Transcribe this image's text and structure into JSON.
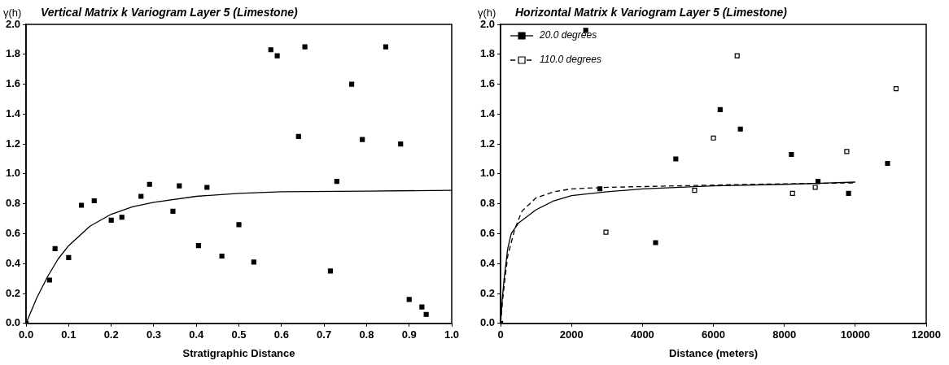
{
  "chart_data": [
    {
      "type": "scatter",
      "title": "Vertical Matrix k Variogram Layer 5 (Limestone)",
      "xlabel": "Stratigraphic Distance",
      "ylabel": "γ(h)",
      "xlim": [
        0,
        1
      ],
      "ylim": [
        0,
        2
      ],
      "xticks": [
        {
          "value": 0,
          "label": "0.0"
        },
        {
          "value": 0.1,
          "label": "0.1"
        },
        {
          "value": 0.2,
          "label": "0.2"
        },
        {
          "value": 0.3,
          "label": "0.3"
        },
        {
          "value": 0.4,
          "label": "0.4"
        },
        {
          "value": 0.5,
          "label": "0.5"
        },
        {
          "value": 0.6,
          "label": "0.6"
        },
        {
          "value": 0.7,
          "label": "0.7"
        },
        {
          "value": 0.8,
          "label": "0.8"
        },
        {
          "value": 0.9,
          "label": "0.9"
        },
        {
          "value": 1,
          "label": "1.0"
        }
      ],
      "yticks": [
        {
          "value": 0,
          "label": "0.0"
        },
        {
          "value": 0.2,
          "label": "0.2"
        },
        {
          "value": 0.4,
          "label": "0.4"
        },
        {
          "value": 0.6,
          "label": "0.6"
        },
        {
          "value": 0.8,
          "label": "0.8"
        },
        {
          "value": 1,
          "label": "1.0"
        },
        {
          "value": 1.2,
          "label": "1.2"
        },
        {
          "value": 1.4,
          "label": "1.4"
        },
        {
          "value": 1.6,
          "label": "1.6"
        },
        {
          "value": 1.8,
          "label": "1.8"
        },
        {
          "value": 2,
          "label": "2.0"
        }
      ],
      "grid": false,
      "legend": false,
      "series": [
        {
          "type": "scatter",
          "color": "#000000",
          "marker": "square",
          "x": [
            0,
            0.055,
            0.068,
            0.1,
            0.13,
            0.16,
            0.2,
            0.225,
            0.27,
            0.29,
            0.345,
            0.36,
            0.405,
            0.425,
            0.46,
            0.5,
            0.535,
            0.575,
            0.59,
            0.64,
            0.655,
            0.715,
            0.73,
            0.765,
            0.79,
            0.845,
            0.88,
            0.9,
            0.93,
            0.94
          ],
          "values": [
            0,
            0.29,
            0.5,
            0.44,
            0.79,
            0.82,
            0.69,
            0.71,
            0.85,
            0.93,
            0.75,
            0.92,
            0.52,
            0.91,
            0.45,
            0.66,
            0.41,
            1.83,
            1.79,
            1.25,
            1.85,
            0.35,
            0.95,
            1.6,
            1.23,
            1.85,
            1.2,
            0.16,
            0.11,
            0.06
          ]
        },
        {
          "type": "line",
          "color": "#000000",
          "marker": "none",
          "line_style": "solid",
          "x": [
            0,
            0.025,
            0.05,
            0.075,
            0.1,
            0.15,
            0.2,
            0.25,
            0.3,
            0.4,
            0.5,
            0.6,
            0.8,
            1
          ],
          "values": [
            0,
            0.17,
            0.31,
            0.43,
            0.52,
            0.65,
            0.73,
            0.78,
            0.81,
            0.85,
            0.87,
            0.88,
            0.885,
            0.89
          ]
        }
      ]
    },
    {
      "type": "scatter",
      "title": "Horizontal Matrix k Variogram Layer 5 (Limestone)",
      "xlabel": "Distance (meters)",
      "ylabel": "γ(h)",
      "xlim": [
        0,
        12000
      ],
      "ylim": [
        0,
        2
      ],
      "xticks": [
        0,
        2000,
        4000,
        6000,
        8000,
        10000,
        12000
      ],
      "yticks": [
        {
          "value": 0,
          "label": "0.0"
        },
        {
          "value": 0.2,
          "label": "0.2"
        },
        {
          "value": 0.4,
          "label": "0.4"
        },
        {
          "value": 0.6,
          "label": "0.6"
        },
        {
          "value": 0.8,
          "label": "0.8"
        },
        {
          "value": 1,
          "label": "1.0"
        },
        {
          "value": 1.2,
          "label": "1.2"
        },
        {
          "value": 1.4,
          "label": "1.4"
        },
        {
          "value": 1.6,
          "label": "1.6"
        },
        {
          "value": 1.8,
          "label": "1.8"
        },
        {
          "value": 2,
          "label": "2.0"
        }
      ],
      "grid": false,
      "legend": "top left",
      "series": [
        {
          "type": "scatter",
          "name": "20.0 degrees",
          "color": "#000000",
          "marker": "square",
          "x": [
            0,
            2400,
            2800,
            4370,
            4940,
            6190,
            6760,
            8200,
            8950,
            9810,
            10910
          ],
          "values": [
            0,
            1.96,
            0.9,
            0.54,
            1.1,
            1.43,
            1.3,
            1.13,
            0.95,
            0.87,
            1.07
          ]
        },
        {
          "type": "scatter",
          "name": "110.0 degrees",
          "color": "#ffffff",
          "marker": "square",
          "x": [
            2970,
            5470,
            6000,
            6670,
            8230,
            8870,
            9760,
            11150
          ],
          "values": [
            0.61,
            0.89,
            1.24,
            1.79,
            0.87,
            0.91,
            1.15,
            1.57
          ]
        },
        {
          "type": "line",
          "color": "#000000",
          "marker": "none",
          "line_style": "solid",
          "x": [
            0,
            50,
            100,
            200,
            300,
            500,
            1000,
            1500,
            2000,
            3000,
            4000,
            6000,
            8000,
            10000
          ],
          "values": [
            0,
            0.17,
            0.3,
            0.5,
            0.6,
            0.67,
            0.76,
            0.82,
            0.855,
            0.88,
            0.9,
            0.92,
            0.93,
            0.945
          ]
        },
        {
          "type": "line",
          "color": "#000000",
          "marker": "none",
          "line_style": "dashed",
          "x": [
            0,
            50,
            100,
            200,
            400,
            600,
            1000,
            1500,
            2000,
            3000,
            5000,
            7000,
            10000
          ],
          "values": [
            0,
            0.14,
            0.25,
            0.45,
            0.63,
            0.75,
            0.84,
            0.88,
            0.9,
            0.91,
            0.92,
            0.93,
            0.94
          ]
        }
      ]
    }
  ]
}
